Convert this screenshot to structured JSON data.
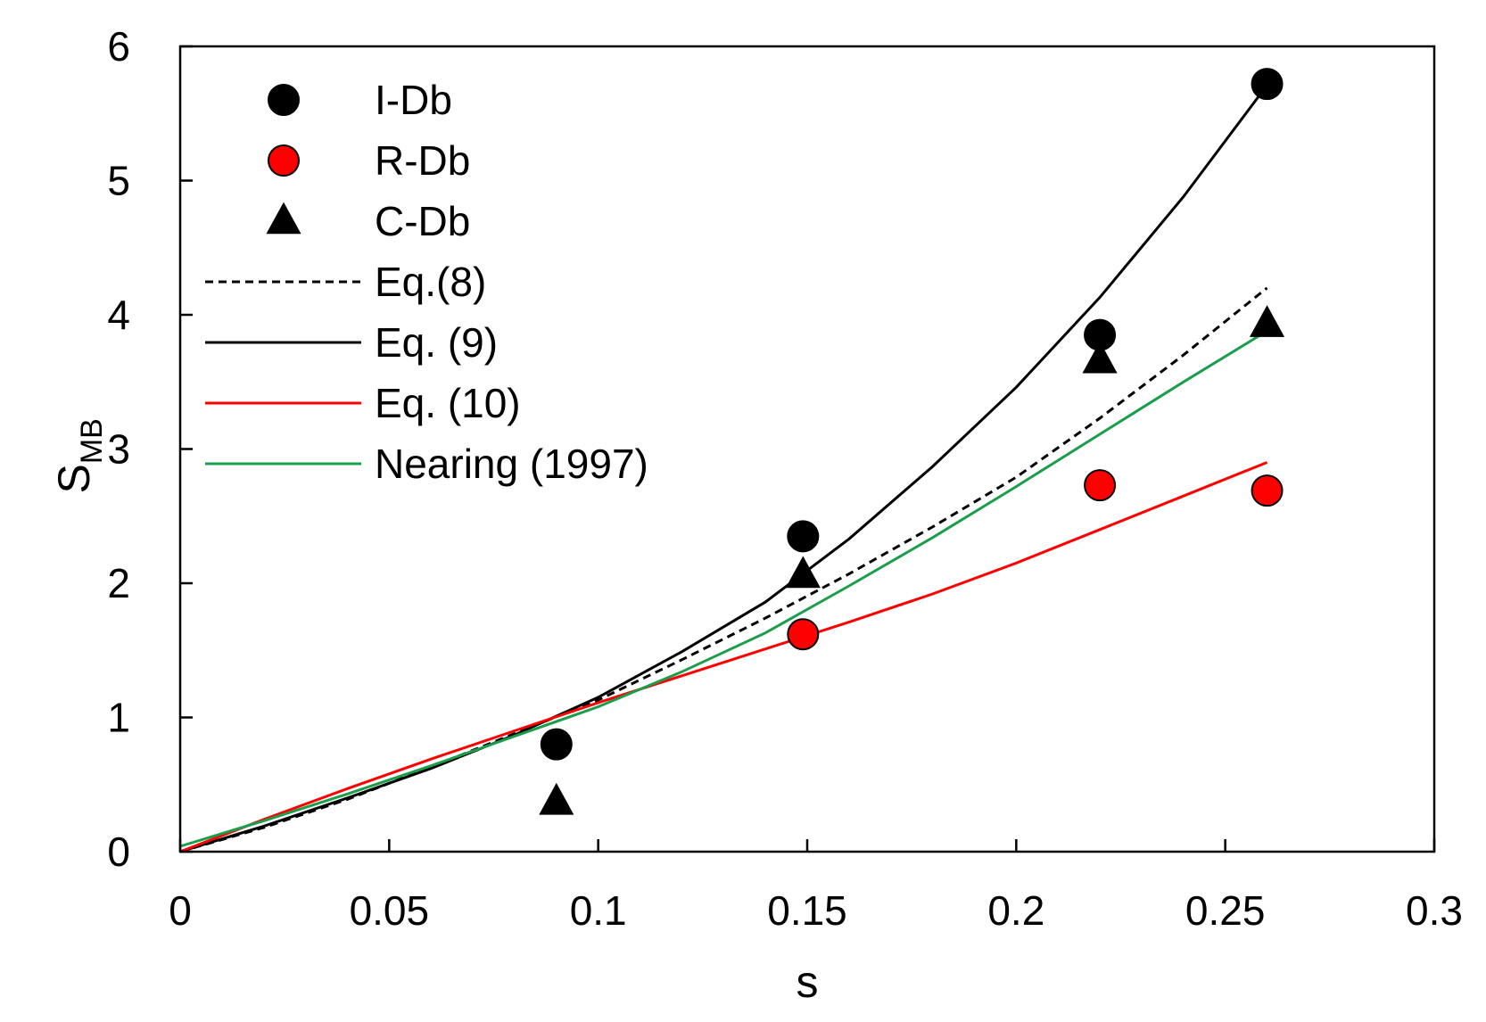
{
  "chart_data": {
    "type": "scatter",
    "title": "",
    "xlabel": "s",
    "ylabel": {
      "main": "S",
      "subscript": "MB"
    },
    "xlim": [
      0,
      0.3
    ],
    "ylim": [
      0,
      6
    ],
    "x_ticks": [
      0,
      0.05,
      0.1,
      0.15,
      0.2,
      0.25,
      0.3
    ],
    "x_tick_labels": [
      "0",
      "0.05",
      "0.1",
      "0.15",
      "0.2",
      "0.25",
      "0.3"
    ],
    "y_ticks": [
      0,
      1,
      2,
      3,
      4,
      5,
      6
    ],
    "y_tick_labels": [
      "0",
      "1",
      "2",
      "3",
      "4",
      "5",
      "6"
    ],
    "grid": false,
    "legend_position": "top-left",
    "series": [
      {
        "name": "I-Db",
        "kind": "points",
        "marker": "circle",
        "color": "#000000",
        "x": [
          0.09,
          0.149,
          0.22,
          0.26
        ],
        "y": [
          0.8,
          2.35,
          3.85,
          5.72
        ]
      },
      {
        "name": "R-Db",
        "kind": "points",
        "marker": "circle",
        "color": "#ff0000",
        "x": [
          0.149,
          0.22,
          0.26
        ],
        "y": [
          1.62,
          2.73,
          2.69
        ]
      },
      {
        "name": "C-Db",
        "kind": "points",
        "marker": "triangle",
        "color": "#000000",
        "x": [
          0.09,
          0.149,
          0.22,
          0.26
        ],
        "y": [
          0.37,
          2.06,
          3.66,
          3.93
        ]
      },
      {
        "name": "Eq.(8)",
        "kind": "line",
        "style": "dashed",
        "color": "#000000",
        "x": [
          0,
          0.02,
          0.04,
          0.06,
          0.08,
          0.1,
          0.12,
          0.14,
          0.16,
          0.18,
          0.2,
          0.22,
          0.24,
          0.26
        ],
        "y": [
          0.0,
          0.18,
          0.39,
          0.63,
          0.88,
          1.13,
          1.43,
          1.74,
          2.07,
          2.42,
          2.79,
          3.23,
          3.7,
          4.2
        ]
      },
      {
        "name": "Eq. (9)",
        "kind": "line",
        "style": "solid",
        "color": "#000000",
        "x": [
          0,
          0.02,
          0.04,
          0.06,
          0.08,
          0.1,
          0.12,
          0.14,
          0.16,
          0.18,
          0.2,
          0.22,
          0.24,
          0.26
        ],
        "y": [
          0.0,
          0.19,
          0.4,
          0.62,
          0.87,
          1.15,
          1.49,
          1.86,
          2.33,
          2.87,
          3.46,
          4.13,
          4.88,
          5.71
        ]
      },
      {
        "name": "Eq. (10)",
        "kind": "line",
        "style": "solid",
        "color": "#ff0000",
        "x": [
          0,
          0.02,
          0.04,
          0.06,
          0.08,
          0.1,
          0.12,
          0.14,
          0.16,
          0.18,
          0.2,
          0.22,
          0.24,
          0.26
        ],
        "y": [
          0.0,
          0.24,
          0.47,
          0.69,
          0.9,
          1.11,
          1.31,
          1.51,
          1.71,
          1.92,
          2.15,
          2.4,
          2.65,
          2.9
        ]
      },
      {
        "name": "Nearing (1997)",
        "kind": "line",
        "style": "solid",
        "color": "#1a9e4b",
        "x": [
          0,
          0.02,
          0.04,
          0.06,
          0.08,
          0.1,
          0.12,
          0.14,
          0.16,
          0.18,
          0.2,
          0.22,
          0.24,
          0.26
        ],
        "y": [
          0.04,
          0.23,
          0.43,
          0.64,
          0.86,
          1.08,
          1.34,
          1.63,
          1.98,
          2.34,
          2.72,
          3.11,
          3.5,
          3.88
        ]
      }
    ]
  }
}
